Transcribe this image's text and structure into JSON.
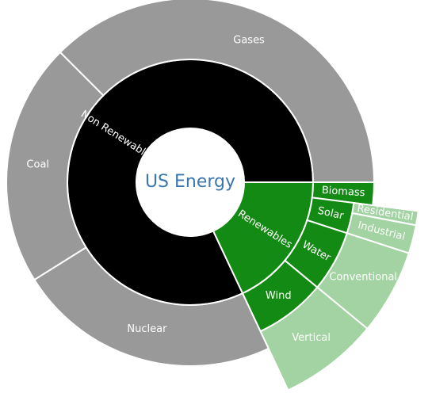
{
  "chart_data": {
    "type": "sunburst",
    "root": {
      "name": "US Energy",
      "value": 100,
      "children": [
        {
          "name": "Renewables",
          "value": 18,
          "color": "#138a13",
          "children": [
            {
              "name": "Biomass",
              "value": 2,
              "color": "#138a13",
              "children": []
            },
            {
              "name": "Solar",
              "value": 3,
              "color": "#138a13",
              "children": [
                {
                  "name": "Residential",
                  "value": 1,
                  "color": "#a3d3a3"
                },
                {
                  "name": "Industrial",
                  "value": 2,
                  "color": "#a3d3a3"
                }
              ]
            },
            {
              "name": "Water",
              "value": 6,
              "color": "#138a13",
              "children": [
                {
                  "name": "Conventional",
                  "value": 6,
                  "color": "#a3d3a3"
                }
              ]
            },
            {
              "name": "Wind",
              "value": 7,
              "color": "#138a13",
              "children": [
                {
                  "name": "Vertical",
                  "value": 7,
                  "color": "#a3d3a3"
                }
              ]
            }
          ]
        },
        {
          "name": "Non Renewable",
          "value": 82,
          "color": "#000000",
          "children": [
            {
              "name": "Nuclear",
              "value": 23.1,
              "color": "#999999"
            },
            {
              "name": "Coal",
              "value": 21.4,
              "color": "#999999"
            },
            {
              "name": "Gases",
              "value": 37.5,
              "color": "#999999"
            }
          ]
        }
      ]
    }
  }
}
